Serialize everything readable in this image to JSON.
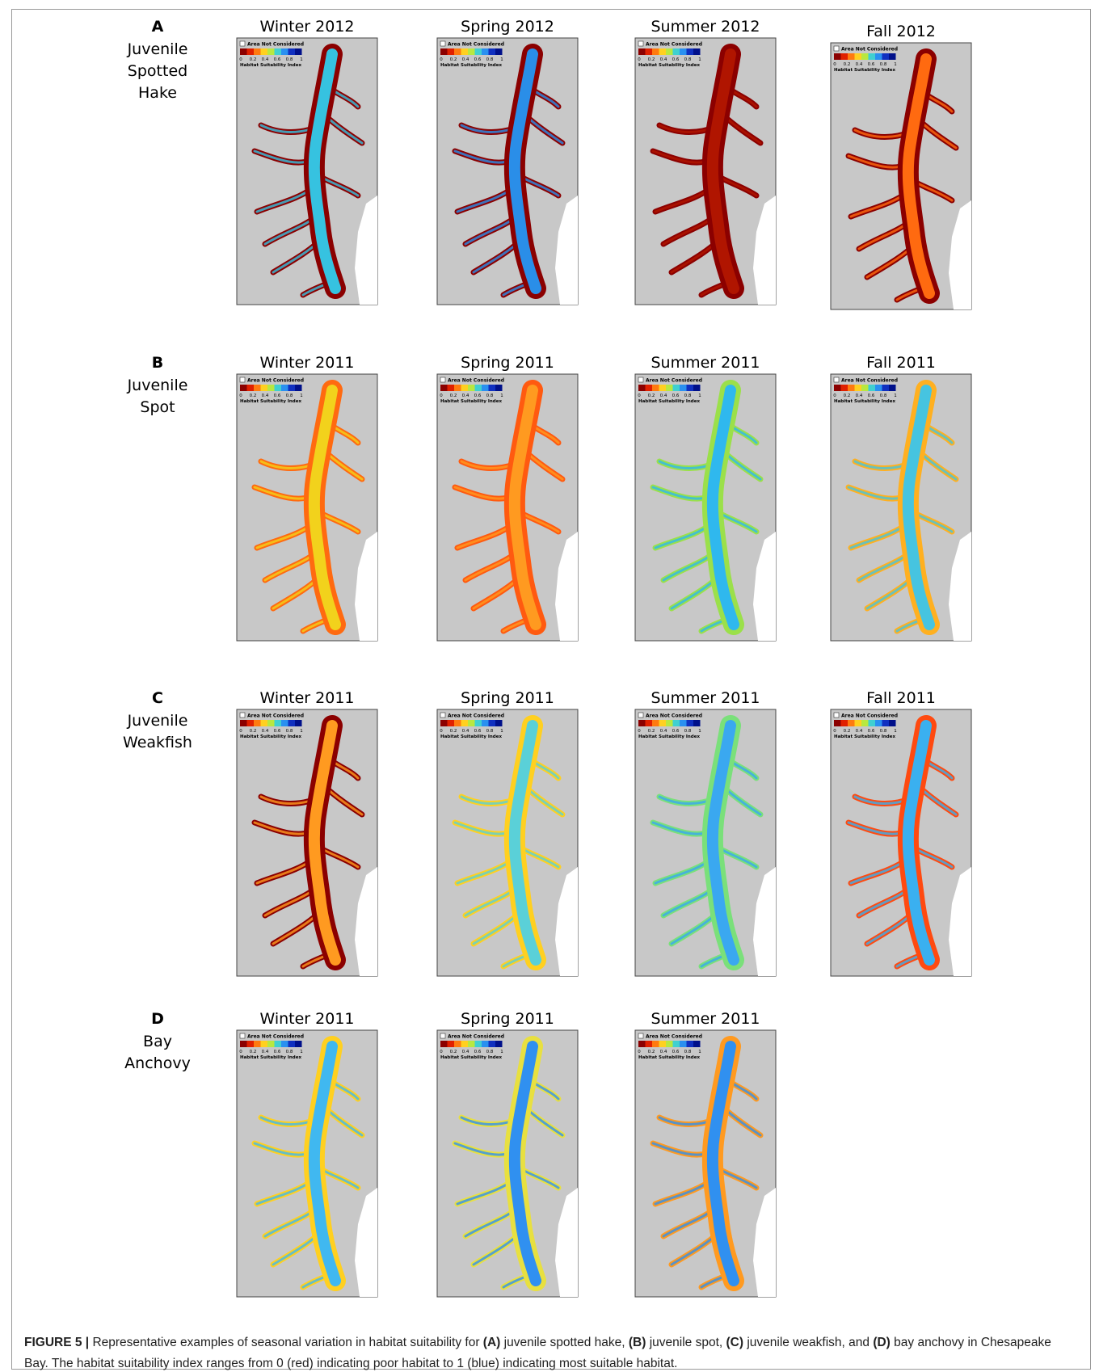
{
  "rows": [
    {
      "letter": "A",
      "name_lines": [
        "Juvenile",
        "Spotted",
        "Hake"
      ],
      "panels": [
        {
          "title": "Winter 2012"
        },
        {
          "title": "Spring 2012"
        },
        {
          "title": "Summer 2012"
        },
        {
          "title": "Fall 2012"
        }
      ]
    },
    {
      "letter": "B",
      "name_lines": [
        "Juvenile",
        "Spot"
      ],
      "panels": [
        {
          "title": "Winter 2011"
        },
        {
          "title": "Spring 2011"
        },
        {
          "title": "Summer 2011"
        },
        {
          "title": "Fall 2011"
        }
      ]
    },
    {
      "letter": "C",
      "name_lines": [
        "Juvenile",
        "Weakfish"
      ],
      "panels": [
        {
          "title": "Winter 2011"
        },
        {
          "title": "Spring 2011"
        },
        {
          "title": "Summer 2011"
        },
        {
          "title": "Fall 2011"
        }
      ]
    },
    {
      "letter": "D",
      "name_lines": [
        "Bay",
        "Anchovy"
      ],
      "panels": [
        {
          "title": "Winter 2011"
        },
        {
          "title": "Spring 2011"
        },
        {
          "title": "Summer 2011"
        }
      ]
    }
  ],
  "legend": {
    "checkbox_label": "Area Not Considered",
    "ticks": [
      0,
      0.2,
      0.4,
      0.6,
      0.8,
      1
    ],
    "title": "Habitat Suitability Index"
  },
  "caption": [
    {
      "text": "FIGURE 5 |",
      "bold": true
    },
    {
      "text": " Representative examples of seasonal variation in habitat suitability for ",
      "bold": false
    },
    {
      "text": "(A)",
      "bold": true
    },
    {
      "text": " juvenile spotted hake, ",
      "bold": false
    },
    {
      "text": "(B)",
      "bold": true
    },
    {
      "text": " juvenile spot, ",
      "bold": false
    },
    {
      "text": "(C)",
      "bold": true
    },
    {
      "text": " juvenile weakfish, and ",
      "bold": false
    },
    {
      "text": "(D)",
      "bold": true
    },
    {
      "text": " bay anchovy in Chesapeake Bay. The habitat suitability index ranges from 0 (red) indicating poor habitat to 1 (blue) indicating most suitable habitat.",
      "bold": false
    }
  ]
}
